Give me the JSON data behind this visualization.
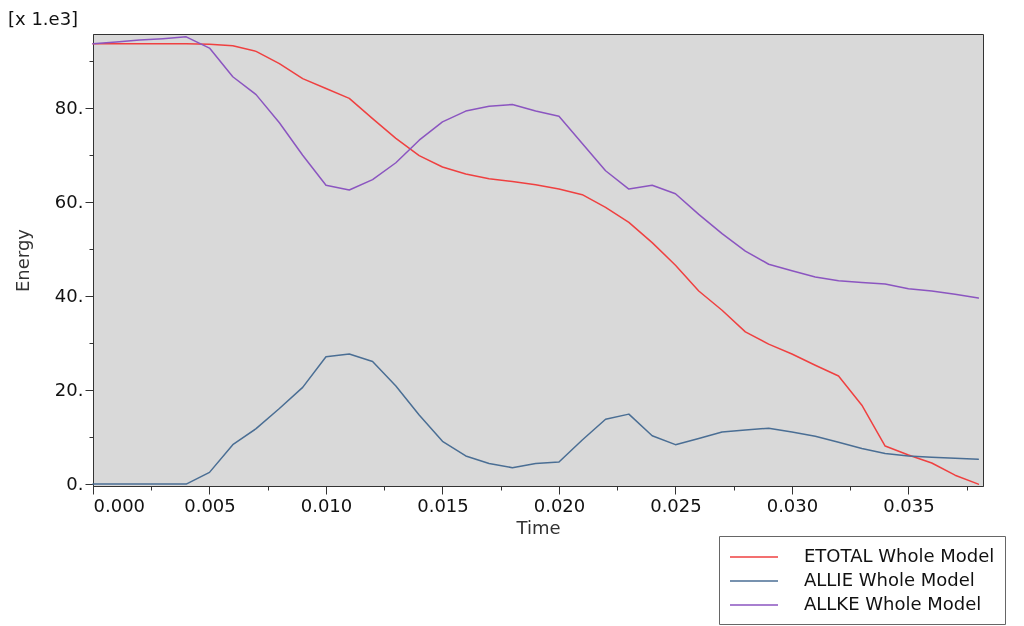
{
  "chart_data": {
    "type": "line",
    "xlabel": "Time",
    "ylabel": "Energy",
    "annotations": [
      "[x 1.e3]"
    ],
    "x": [
      0,
      0.001,
      0.002,
      0.003,
      0.004,
      0.005,
      0.006,
      0.007,
      0.008,
      0.009,
      0.01,
      0.011,
      0.012,
      0.013,
      0.014,
      0.015,
      0.016,
      0.017,
      0.018,
      0.019,
      0.02,
      0.021,
      0.022,
      0.023,
      0.024,
      0.025,
      0.026,
      0.027,
      0.028,
      0.029,
      0.03,
      0.031,
      0.032,
      0.033,
      0.034,
      0.035,
      0.036,
      0.037,
      0.038
    ],
    "series": [
      {
        "name": "ETOTAL Whole Model",
        "color": "#ef4040",
        "values": [
          93.7,
          93.7,
          93.7,
          93.7,
          93.7,
          93.6,
          93.3,
          92.1,
          89.5,
          86.3,
          84.2,
          82.1,
          77.8,
          73.6,
          69.9,
          67.5,
          66.0,
          65.0,
          64.4,
          63.7,
          62.8,
          61.6,
          58.9,
          55.7,
          51.4,
          46.6,
          41.1,
          37.0,
          32.4,
          29.8,
          27.7,
          25.3,
          23.0,
          16.8,
          8.1,
          6.2,
          4.5,
          1.9,
          0.0
        ]
      },
      {
        "name": "ALLIE Whole Model",
        "color": "#4a6e94",
        "values": [
          0.0,
          0.0,
          0.0,
          0.0,
          0.0,
          2.5,
          8.4,
          11.8,
          16.1,
          20.6,
          27.1,
          27.7,
          26.1,
          20.9,
          14.7,
          9.1,
          6.0,
          4.4,
          3.5,
          4.4,
          4.7,
          9.4,
          13.8,
          14.9,
          10.3,
          8.4,
          9.7,
          11.1,
          11.5,
          11.9,
          11.1,
          10.2,
          8.9,
          7.6,
          6.5,
          6.0,
          5.7,
          5.5,
          5.3
        ]
      },
      {
        "name": "ALLKE Whole Model",
        "color": "#8b55c0",
        "values": [
          93.7,
          94.1,
          94.5,
          94.8,
          95.2,
          92.8,
          86.7,
          82.9,
          76.9,
          70.0,
          63.6,
          62.6,
          64.8,
          68.4,
          73.2,
          77.1,
          79.4,
          80.4,
          80.8,
          79.4,
          78.3,
          72.5,
          66.7,
          62.8,
          63.6,
          61.8,
          57.4,
          53.3,
          49.6,
          46.8,
          45.4,
          44.1,
          43.3,
          42.9,
          42.6,
          41.6,
          41.1,
          40.4,
          39.6
        ]
      }
    ],
    "xlim": [
      0,
      0.0382
    ],
    "ylim": [
      -0.4,
      95.8
    ],
    "xticks": [
      {
        "value": 0,
        "label": "0.000"
      },
      {
        "value": 0.0025,
        "label": null
      },
      {
        "value": 0.005,
        "label": "0.005"
      },
      {
        "value": 0.0075,
        "label": null
      },
      {
        "value": 0.01,
        "label": "0.010"
      },
      {
        "value": 0.0125,
        "label": null
      },
      {
        "value": 0.015,
        "label": "0.015"
      },
      {
        "value": 0.0175,
        "label": null
      },
      {
        "value": 0.02,
        "label": "0.020"
      },
      {
        "value": 0.0225,
        "label": null
      },
      {
        "value": 0.025,
        "label": "0.025"
      },
      {
        "value": 0.0275,
        "label": null
      },
      {
        "value": 0.03,
        "label": "0.030"
      },
      {
        "value": 0.0325,
        "label": null
      },
      {
        "value": 0.035,
        "label": "0.035"
      },
      {
        "value": 0.0375,
        "label": null
      }
    ],
    "yticks": [
      {
        "value": 0,
        "label": "0."
      },
      {
        "value": 10,
        "label": null
      },
      {
        "value": 20,
        "label": "20."
      },
      {
        "value": 30,
        "label": null
      },
      {
        "value": 40,
        "label": "40."
      },
      {
        "value": 50,
        "label": null
      },
      {
        "value": 60,
        "label": "60."
      },
      {
        "value": 70,
        "label": null
      },
      {
        "value": 80,
        "label": "80."
      },
      {
        "value": 90,
        "label": null
      }
    ],
    "legend": "bottom right",
    "line_style": "solid"
  }
}
